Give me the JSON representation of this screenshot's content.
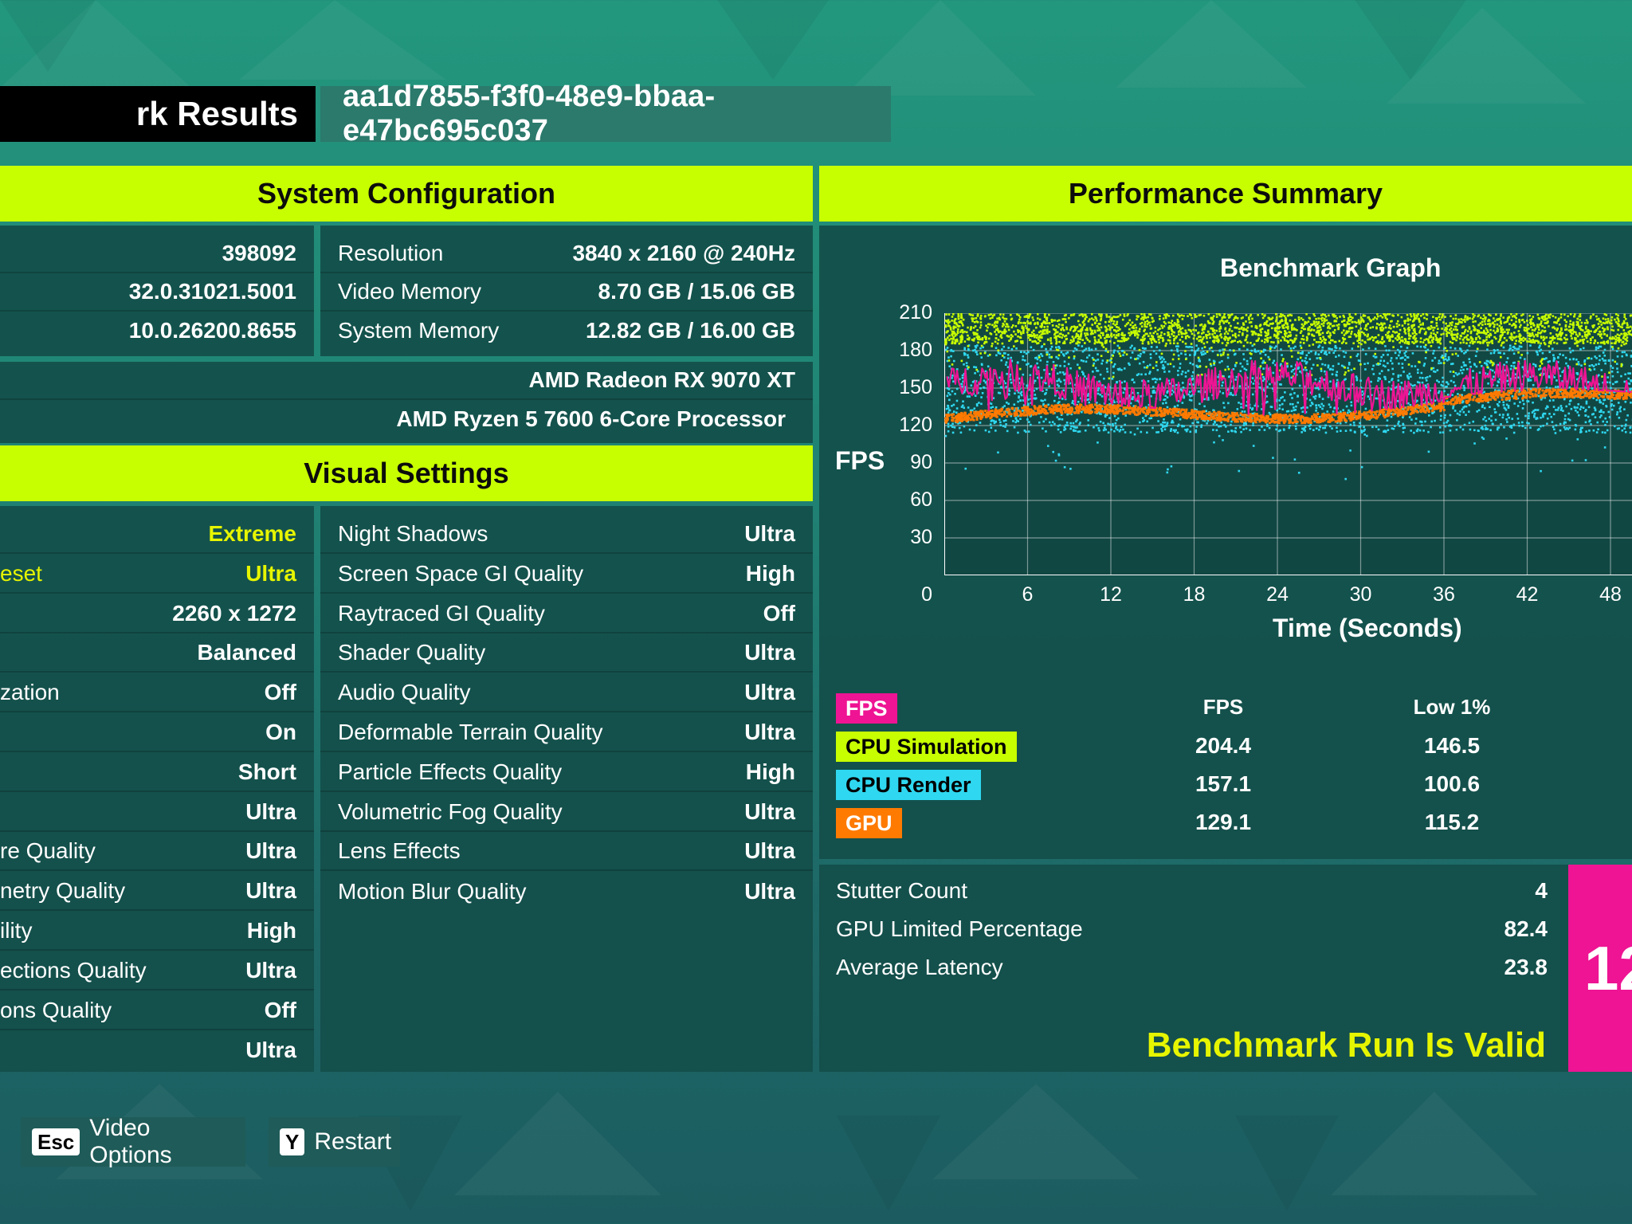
{
  "header": {
    "title": "rk Results",
    "run_id": "aa1d7855-f3f0-48e9-bbaa-e47bc695c037"
  },
  "system_config": {
    "heading": "System Configuration",
    "left_values": [
      "398092",
      "32.0.31021.5001",
      "10.0.26200.8655"
    ],
    "right_rows": [
      {
        "label": "Resolution",
        "value": "3840 x 2160 @ 240Hz"
      },
      {
        "label": "Video Memory",
        "value": "8.70 GB / 15.06 GB"
      },
      {
        "label": "System Memory",
        "value": "12.82 GB / 16.00 GB"
      }
    ],
    "gpu": "AMD Radeon RX 9070 XT",
    "cpu": "AMD Ryzen 5 7600 6-Core Processor"
  },
  "visual_settings": {
    "heading": "Visual Settings",
    "left_rows": [
      {
        "label": "",
        "value": "Extreme",
        "highlight": true
      },
      {
        "label": "eset",
        "value": "Ultra",
        "highlight": true
      },
      {
        "label": "",
        "value": "2260 x 1272",
        "highlight": false
      },
      {
        "label": "",
        "value": "Balanced",
        "highlight": false
      },
      {
        "label": "zation",
        "value": "Off",
        "highlight": false
      },
      {
        "label": "",
        "value": "On",
        "highlight": false
      },
      {
        "label": "",
        "value": "Short",
        "highlight": false
      },
      {
        "label": "",
        "value": "Ultra",
        "highlight": false
      },
      {
        "label": "re Quality",
        "value": "Ultra",
        "highlight": false
      },
      {
        "label": "netry Quality",
        "value": "Ultra",
        "highlight": false
      },
      {
        "label": "ility",
        "value": "High",
        "highlight": false
      },
      {
        "label": "ections Quality",
        "value": "Ultra",
        "highlight": false
      },
      {
        "label": "ons Quality",
        "value": "Off",
        "highlight": false
      },
      {
        "label": "",
        "value": "Ultra",
        "highlight": false
      }
    ],
    "right_rows": [
      {
        "label": "Night Shadows",
        "value": "Ultra"
      },
      {
        "label": "Screen Space GI Quality",
        "value": "High"
      },
      {
        "label": "Raytraced GI Quality",
        "value": "Off"
      },
      {
        "label": "Shader Quality",
        "value": "Ultra"
      },
      {
        "label": "Audio Quality",
        "value": "Ultra"
      },
      {
        "label": "Deformable Terrain Quality",
        "value": "Ultra"
      },
      {
        "label": "Particle Effects Quality",
        "value": "High"
      },
      {
        "label": "Volumetric Fog Quality",
        "value": "Ultra"
      },
      {
        "label": "Lens Effects",
        "value": "Ultra"
      },
      {
        "label": "Motion Blur Quality",
        "value": "Ultra"
      }
    ]
  },
  "performance": {
    "heading": "Performance Summary",
    "graph_title": "Benchmark Graph",
    "y_axis_label": "FPS",
    "x_axis_label": "Time (Seconds)",
    "y_ticks": [
      "210",
      "180",
      "150",
      "120",
      "90",
      "60",
      "30",
      "0"
    ],
    "x_ticks": [
      "6",
      "12",
      "18",
      "24",
      "30",
      "36",
      "42",
      "48"
    ],
    "legend": [
      {
        "name": "FPS",
        "color": "#ee1493",
        "text_color": "#ffffff"
      },
      {
        "name": "CPU Simulation",
        "color": "#c8ff00",
        "text_color": "#000000"
      },
      {
        "name": "CPU Render",
        "color": "#2fd8f0",
        "text_color": "#000000"
      },
      {
        "name": "GPU",
        "color": "#ff7a00",
        "text_color": "#ffffff"
      }
    ],
    "table_headers": [
      "FPS",
      "Low 1%"
    ],
    "table_rows": [
      {
        "fps": "204.4",
        "low": "146.5"
      },
      {
        "fps": "157.1",
        "low": "100.6"
      },
      {
        "fps": "129.1",
        "low": "115.2"
      }
    ],
    "stats": [
      {
        "label": "Stutter Count",
        "value": "4"
      },
      {
        "label": "GPU Limited Percentage",
        "value": "82.4"
      },
      {
        "label": "Average Latency",
        "value": "23.8"
      }
    ],
    "valid_message": "Benchmark Run Is Valid",
    "score_partial": "12"
  },
  "chart_data": {
    "type": "scatter",
    "title": "Benchmark Graph",
    "xlabel": "Time (Seconds)",
    "ylabel": "FPS",
    "xlim": [
      0,
      50
    ],
    "ylim": [
      0,
      210
    ],
    "x_ticks": [
      6,
      12,
      18,
      24,
      30,
      36,
      42,
      48
    ],
    "y_ticks": [
      0,
      30,
      60,
      90,
      120,
      150,
      180,
      210
    ],
    "grid": true,
    "series": [
      {
        "name": "CPU Simulation",
        "color": "#c8ff00",
        "style": "scatter",
        "typical_range": [
          180,
          210
        ]
      },
      {
        "name": "CPU Render",
        "color": "#2fd8f0",
        "style": "scatter",
        "typical_range": [
          110,
          200
        ]
      },
      {
        "name": "FPS",
        "color": "#ee1493",
        "style": "line",
        "typical_range": [
          125,
          175
        ]
      },
      {
        "name": "GPU",
        "color": "#ff7a00",
        "style": "line",
        "typical_range": [
          115,
          145
        ]
      }
    ]
  },
  "footer": {
    "buttons": [
      {
        "key": "Esc",
        "label": "Video Options"
      },
      {
        "key": "Y",
        "label": "Restart"
      }
    ]
  }
}
